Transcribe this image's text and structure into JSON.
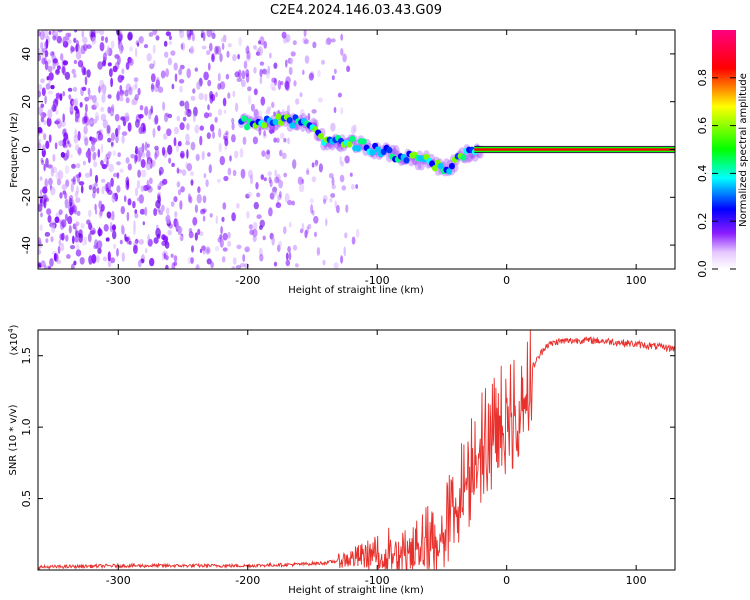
{
  "title": "C2E4.2024.146.03.43.G09",
  "chart_data": [
    {
      "type": "heatmap",
      "xlabel": "Height of straight line (km)",
      "ylabel": "Frequency (Hz)",
      "xlim": [
        -362,
        130
      ],
      "ylim": [
        -50,
        50
      ],
      "xticks": [
        -300,
        -200,
        -100,
        0,
        100
      ],
      "yticks": [
        -40,
        -20,
        0,
        20,
        40
      ],
      "colorbar": {
        "label": "Normalized spectral amplitude",
        "range": [
          0.0,
          1.0
        ],
        "ticks": [
          "0.0",
          "0.2",
          "0.4",
          "0.6",
          "0.8"
        ],
        "colormap": [
          "#ffffff",
          "#7b00ff",
          "#0000ff",
          "#00ffff",
          "#00ff00",
          "#ffff00",
          "#ff0000",
          "#ff0080"
        ]
      },
      "description_points": {
        "noise_region_x": [
          -362,
          -140
        ],
        "ridge": [
          {
            "x": -205,
            "y": 11
          },
          {
            "x": -180,
            "y": 12
          },
          {
            "x": -150,
            "y": 11
          },
          {
            "x": -140,
            "y": 3
          },
          {
            "x": -120,
            "y": 3
          },
          {
            "x": -100,
            "y": 0
          },
          {
            "x": -80,
            "y": -3
          },
          {
            "x": -60,
            "y": -5
          },
          {
            "x": -45,
            "y": -8
          },
          {
            "x": -35,
            "y": -3
          },
          {
            "x": -20,
            "y": 0
          },
          {
            "x": 0,
            "y": 1
          },
          {
            "x": 130,
            "y": 0
          }
        ]
      }
    },
    {
      "type": "line",
      "xlabel": "Height of straight line (km)",
      "ylabel": "SNR (10 * v/v)",
      "yscale_label": "(x10",
      "yscale_exp": "4",
      "xlim": [
        -362,
        130
      ],
      "ylim": [
        0.0,
        1.68
      ],
      "xticks": [
        -300,
        -200,
        -100,
        0,
        100
      ],
      "yticks": [
        0.5,
        1.0,
        1.5
      ],
      "color": "#e8302c",
      "series": [
        {
          "x": [
            -362,
            -300,
            -250,
            -200,
            -160,
            -140,
            -120,
            -100,
            -80,
            -60,
            -50,
            -40,
            -30,
            -20,
            -10,
            0,
            10,
            20,
            30,
            40,
            60,
            80,
            100,
            130
          ],
          "y": [
            0.02,
            0.03,
            0.03,
            0.03,
            0.04,
            0.05,
            0.08,
            0.12,
            0.2,
            0.24,
            0.3,
            0.5,
            0.75,
            0.95,
            1.05,
            1.15,
            1.25,
            1.42,
            1.57,
            1.6,
            1.61,
            1.6,
            1.58,
            1.55
          ]
        }
      ]
    }
  ]
}
